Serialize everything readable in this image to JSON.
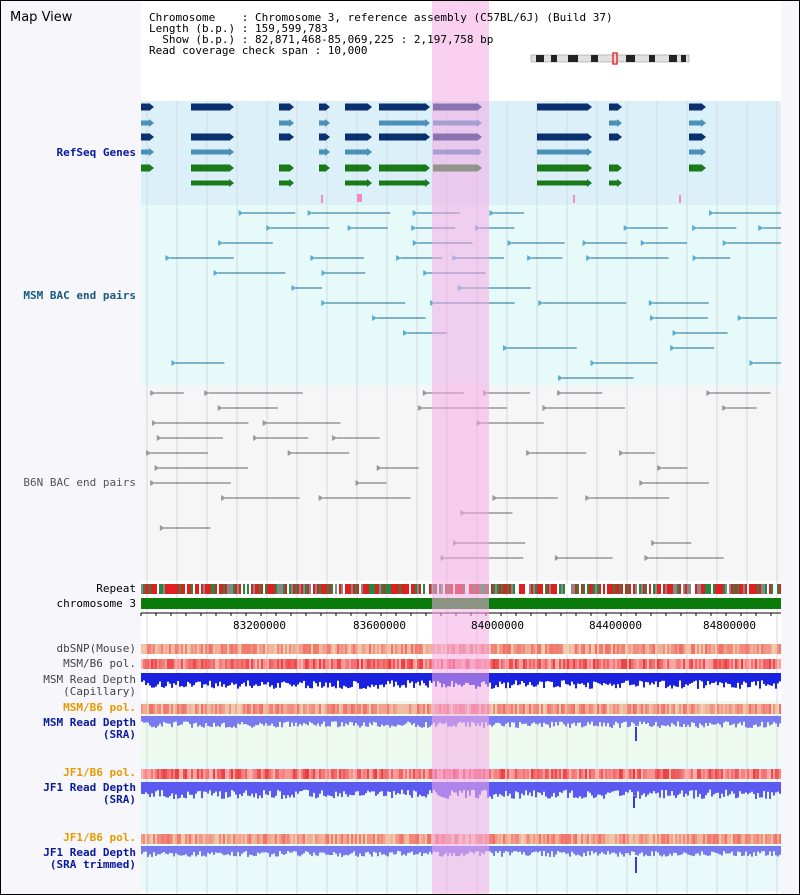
{
  "window": {
    "title": "Map View"
  },
  "header": {
    "line1": "Chromosome    : Chromosome 3, reference assembly (C57BL/6J) (Build 37)",
    "line2": "Length (b.p.) : 159,599,783",
    "line3": "  Show (b.p.) : 82,871,468-85,069,225 : 2,197,758 bp",
    "line4": "Read coverage check span : 10,000"
  },
  "tracks": {
    "refseq": "RefSeq Genes",
    "msm_bac": "MSM BAC end pairs",
    "b6n_bac": "B6N BAC end pairs",
    "repeat": "Repeat",
    "chromosome": "chromosome 3",
    "dbsnp": "dbSNP(Mouse)",
    "msm_b6_pol": "MSM/B6 pol.",
    "msm_depth_cap_1": "MSM Read Depth",
    "msm_depth_cap_2": "(Capillary)",
    "msm_b6_pol_2": "MSM/B6 pol.",
    "msm_depth_sra_1": "MSM Read Depth",
    "msm_depth_sra_2": "(SRA)",
    "jf1_b6_pol": "JF1/B6 pol.",
    "jf1_depth_sra_1": "JF1 Read Depth",
    "jf1_depth_sra_2": "(SRA)",
    "jf1_b6_pol_2": "JF1/B6 pol.",
    "jf1_depth_trim_1": "JF1 Read Depth",
    "jf1_depth_trim_2": "(SRA trimmed)"
  },
  "axis": {
    "ticks": [
      "83200000",
      "83600000",
      "84000000",
      "84400000",
      "84800000"
    ]
  },
  "colors": {
    "refseq_bg": "#dcf0fa",
    "msm_bg": "#e6fafa",
    "b6n_bg": "#f6f6f6",
    "gene_dark": "#0a3070",
    "gene_mid": "#4a90b8",
    "gene_green": "#1a7a1a",
    "msm_line": "#1a6a90",
    "b6n_line": "#666666",
    "chrom_green": "#0a7a0a",
    "depth_blue": "#1a2ae8",
    "label_navy": "#0a1a9a",
    "label_teal": "#1a5a80",
    "label_orange": "#e89a00",
    "label_gray": "#444444"
  }
}
